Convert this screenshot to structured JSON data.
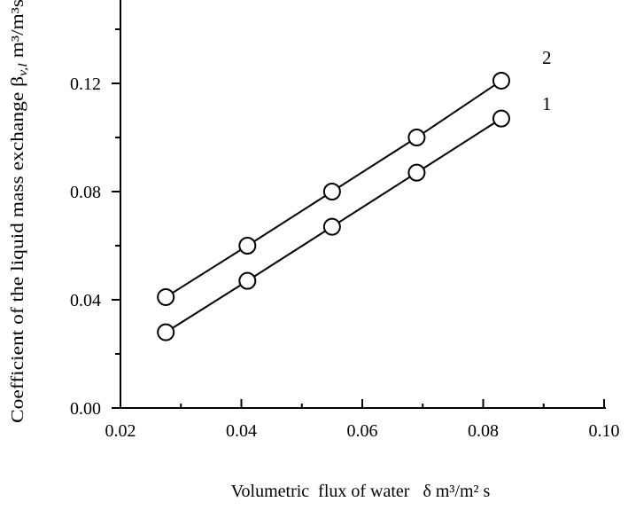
{
  "chart_data": {
    "type": "line",
    "xlabel": "Volumetric  flux of water   δ m³/m² s",
    "ylabel": "Coefficient of the liquid mass exchange β",
    "ylabel_sub": "v,l",
    "ylabel_unit": " m³/m³s",
    "xlim": [
      0.02,
      0.1
    ],
    "ylim": [
      0.0,
      0.14
    ],
    "x_ticks": [
      0.02,
      0.04,
      0.06,
      0.08,
      0.1
    ],
    "x_tick_labels": [
      "0.02",
      "0.04",
      "0.06",
      "0.08",
      "0.10"
    ],
    "y_ticks": [
      0.0,
      0.04,
      0.08,
      0.12
    ],
    "y_tick_labels": [
      "0.00",
      "0.04",
      "0.08",
      "0.12"
    ],
    "grid": false,
    "marker": "open-circle",
    "series": [
      {
        "name": "1",
        "x": [
          0.0275,
          0.041,
          0.055,
          0.069,
          0.083
        ],
        "y": [
          0.028,
          0.047,
          0.067,
          0.087,
          0.107
        ]
      },
      {
        "name": "2",
        "x": [
          0.0275,
          0.041,
          0.055,
          0.069,
          0.083
        ],
        "y": [
          0.041,
          0.06,
          0.08,
          0.1,
          0.121
        ]
      }
    ]
  }
}
